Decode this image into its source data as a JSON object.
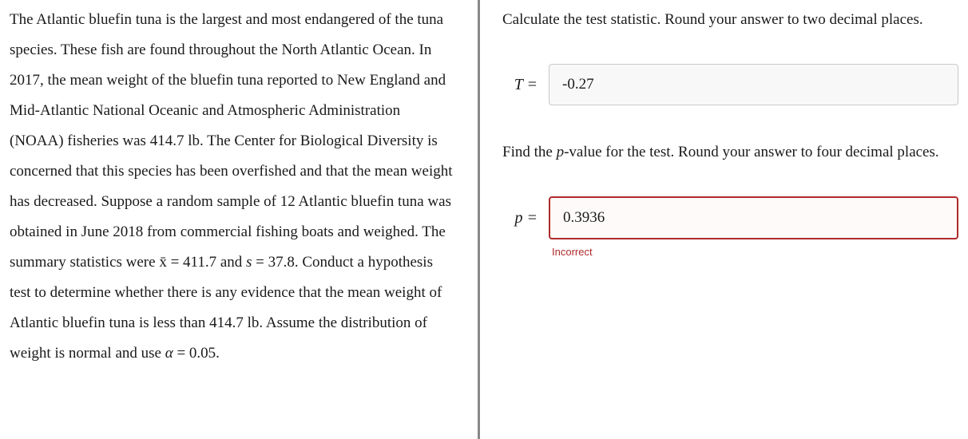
{
  "left": {
    "paragraph_html": "The Atlantic bluefin tuna is the largest and most endangered of the tuna species. These fish are found throughout the North Atlantic Ocean. In 2017, the mean weight of the bluefin tuna reported to New England and Mid-Atlantic National Oceanic and Atmospheric Administration (NOAA) fisheries was 414.7 lb. The Center for Biological Diversity is concerned that this species has been overfished and that the mean weight has decreased. Suppose a random sample of 12 Atlantic bluefin tuna was obtained in June 2018 from commercial fishing boats and weighed. The summary statistics were x̄ = 411.7 and <span class=\"math-var\">s</span> = 37.8. Conduct a hypothesis test to determine whether there is any evidence that the mean weight of Atlantic bluefin tuna is less than 414.7 lb. Assume the distribution of weight is normal and use <span class=\"math-var\">α</span> = 0.05."
  },
  "right": {
    "q1_text": "Calculate the test statistic. Round your answer to two decimal places.",
    "q1_label": "T =",
    "q1_value": "-0.27",
    "q2_text_html": "Find the <span class=\"math-var\">p</span>-value for the test. Round your answer to four decimal places.",
    "q2_label": "p =",
    "q2_value": "0.3936",
    "q2_feedback": "Incorrect"
  },
  "colors": {
    "error": "#b02a2a",
    "input_bg": "#f8f8f8",
    "input_border": "#c9c9c9",
    "divider": "#888888"
  }
}
